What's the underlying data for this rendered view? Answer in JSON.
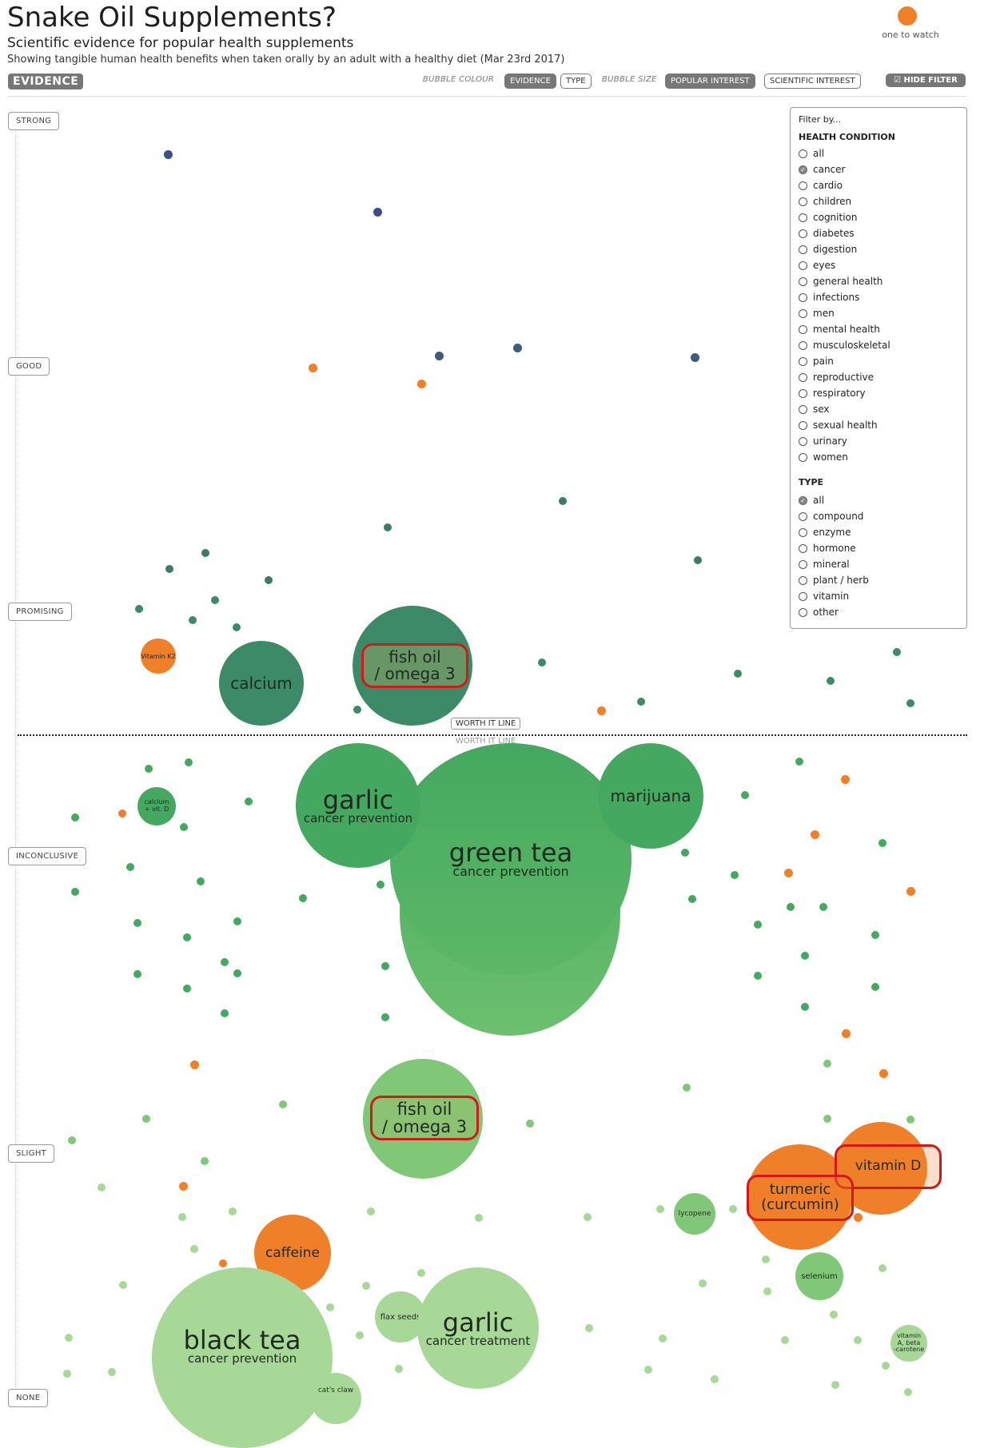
{
  "header": {
    "title": "Snake Oil Supplements?",
    "subtitle": "Scientific evidence for popular health supplements",
    "description": "Showing tangible human health benefits when taken orally by an adult with a healthy diet (Mar 23rd 2017)",
    "legend_label": "one to watch",
    "legend_color": "#f07f2a"
  },
  "toolbar": {
    "evidence_tag": "EVIDENCE",
    "bubble_colour_label": "BUBBLE COLOUR",
    "colour_evidence": "EVIDENCE",
    "colour_type": "TYPE",
    "bubble_size_label": "BUBBLE SIZE",
    "size_popular": "POPULAR INTEREST",
    "size_scientific": "SCIENTIFIC INTEREST",
    "hide_filter": "HIDE FILTER"
  },
  "levels": {
    "strong": "STRONG",
    "good": "GOOD",
    "promising": "PROMISING",
    "inconclusive": "INCONCLUSIVE",
    "slight": "SLIGHT",
    "none": "NONE"
  },
  "worth_it": {
    "label": "WORTH IT LINE",
    "label_echo": "WORTH IT LINE"
  },
  "bubbles": {
    "vitamin_k2": "Vitamin K2",
    "calcium": "calcium",
    "fish_oil_top_1": "fish oil",
    "fish_oil_top_2": "/ omega 3",
    "garlic_prevention": "garlic",
    "garlic_prevention_sub": "cancer prevention",
    "marijuana": "marijuana",
    "green_tea": "green tea",
    "green_tea_sub": "cancer prevention",
    "calcium_vitd_1": "calcium",
    "calcium_vitd_2": "+ vit. D",
    "fish_oil_bottom_1": "fish oil",
    "fish_oil_bottom_2": "/ omega 3",
    "vitamin_d": "vitamin D",
    "turmeric_1": "turmeric",
    "turmeric_2": "(curcumin)",
    "lycopene": "lycopene",
    "caffeine": "caffeine",
    "selenium": "selenium",
    "flax_seeds": "flax seeds",
    "garlic_treatment": "garlic",
    "garlic_treatment_sub": "cancer treatment",
    "black_tea": "black tea",
    "black_tea_sub": "cancer prevention",
    "cats_claw": "cat's claw",
    "vitamin_a_1": "vitamin",
    "vitamin_a_2": "A, beta",
    "vitamin_a_3": "-carotene"
  },
  "filter": {
    "title": "Filter by...",
    "health_heading": "HEALTH CONDITION",
    "health_options": [
      "all",
      "cancer",
      "cardio",
      "children",
      "cognition",
      "diabetes",
      "digestion",
      "eyes",
      "general health",
      "infections",
      "men",
      "mental health",
      "musculoskeletal",
      "pain",
      "reproductive",
      "respiratory",
      "sex",
      "sexual health",
      "urinary",
      "women"
    ],
    "health_selected": "cancer",
    "type_heading": "TYPE",
    "type_options": [
      "all",
      "compound",
      "enzyme",
      "hormone",
      "mineral",
      "plant / herb",
      "vitamin",
      "other"
    ],
    "type_selected": "all"
  },
  "colors": {
    "strong": "#3d4d8a",
    "good": "#3d5c7a",
    "promising": "#3d8a68",
    "inconclusive": "#45a860",
    "slight": "#80c878",
    "slight_light": "#a8d898",
    "orange": "#f07f2a",
    "highlight": "#d41818"
  }
}
